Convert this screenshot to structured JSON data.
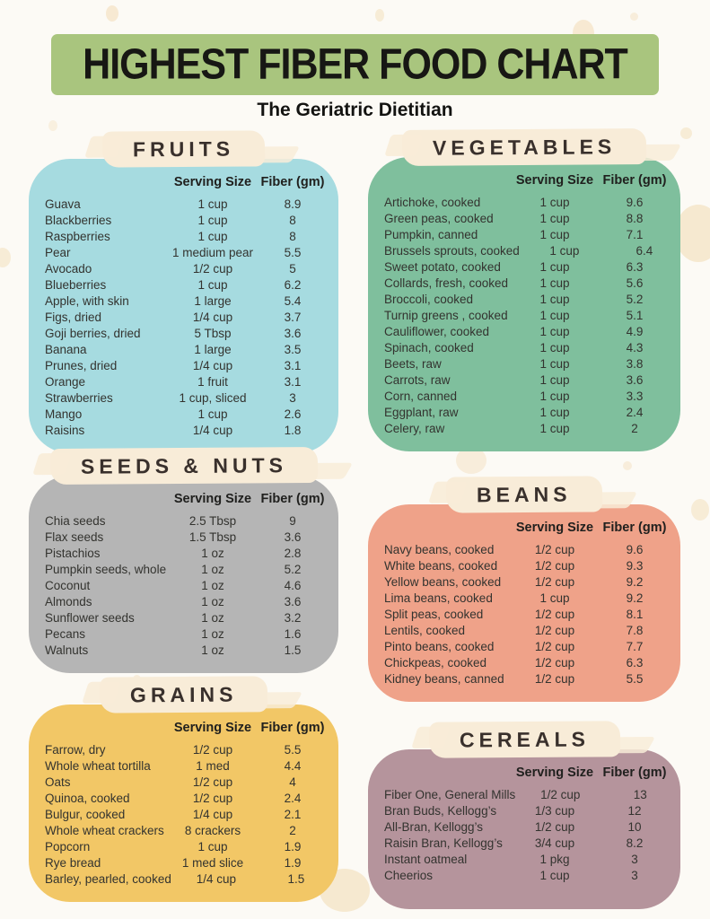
{
  "header": {
    "title": "HIGHEST FIBER FOOD CHART",
    "subtitle": "The Geriatric Dietitian"
  },
  "columns": {
    "serving": "Serving Size",
    "fiber": "Fiber (gm)"
  },
  "palette": {
    "background": "#fcfaf5",
    "splotch": "#f5e5c9",
    "header_band": "#a9c57e",
    "brush": "#f8ecd8",
    "title_text": "#171714",
    "section_title_text": "#39302c",
    "row_text": "#33332f"
  },
  "sections": [
    {
      "id": "fruits",
      "title": "FRUITS",
      "color": "#a6dbe0",
      "rows": [
        [
          "Guava",
          "1 cup",
          "8.9"
        ],
        [
          "Blackberries",
          "1 cup",
          "8"
        ],
        [
          "Raspberries",
          "1 cup",
          "8"
        ],
        [
          "Pear",
          "1 medium pear",
          "5.5"
        ],
        [
          "Avocado",
          "1/2 cup",
          "5"
        ],
        [
          "Blueberries",
          "1 cup",
          "6.2"
        ],
        [
          "Apple, with skin",
          "1 large",
          "5.4"
        ],
        [
          "Figs, dried",
          "1/4 cup",
          "3.7"
        ],
        [
          "Goji berries, dried",
          "5 Tbsp",
          "3.6"
        ],
        [
          "Banana",
          "1 large",
          "3.5"
        ],
        [
          "Prunes, dried",
          "1/4 cup",
          "3.1"
        ],
        [
          "Orange",
          "1 fruit",
          "3.1"
        ],
        [
          "Strawberries",
          "1 cup, sliced",
          "3"
        ],
        [
          "Mango",
          "1 cup",
          "2.6"
        ],
        [
          "Raisins",
          "1/4 cup",
          "1.8"
        ]
      ]
    },
    {
      "id": "vegetables",
      "title": "VEGETABLES",
      "color": "#7fbf9d",
      "rows": [
        [
          "Artichoke, cooked",
          "1 cup",
          "9.6"
        ],
        [
          "Green peas, cooked",
          "1 cup",
          "8.8"
        ],
        [
          "Pumpkin, canned",
          "1 cup",
          "7.1"
        ],
        [
          "Brussels sprouts, cooked",
          "1 cup",
          "6.4"
        ],
        [
          "Sweet potato, cooked",
          "1 cup",
          "6.3"
        ],
        [
          "Collards, fresh, cooked",
          "1 cup",
          "5.6"
        ],
        [
          "Broccoli, cooked",
          "1 cup",
          "5.2"
        ],
        [
          "Turnip greens , cooked",
          "1 cup",
          "5.1"
        ],
        [
          "Cauliflower, cooked",
          "1 cup",
          "4.9"
        ],
        [
          "Spinach, cooked",
          "1 cup",
          "4.3"
        ],
        [
          "Beets, raw",
          "1 cup",
          "3.8"
        ],
        [
          "Carrots, raw",
          "1 cup",
          "3.6"
        ],
        [
          "Corn, canned",
          "1 cup",
          "3.3"
        ],
        [
          "Eggplant, raw",
          "1 cup",
          "2.4"
        ],
        [
          "Celery, raw",
          "1 cup",
          "2"
        ]
      ]
    },
    {
      "id": "seeds-nuts",
      "title": "SEEDS & NUTS",
      "color": "#b5b5b5",
      "rows": [
        [
          "Chia seeds",
          "2.5 Tbsp",
          "9"
        ],
        [
          "Flax seeds",
          "1.5 Tbsp",
          "3.6"
        ],
        [
          "Pistachios",
          "1 oz",
          "2.8"
        ],
        [
          "Pumpkin seeds, whole",
          "1 oz",
          "5.2"
        ],
        [
          "Coconut",
          "1 oz",
          "4.6"
        ],
        [
          "Almonds",
          "1 oz",
          "3.6"
        ],
        [
          "Sunflower seeds",
          "1 oz",
          "3.2"
        ],
        [
          "Pecans",
          "1 oz",
          "1.6"
        ],
        [
          "Walnuts",
          "1 oz",
          "1.5"
        ]
      ]
    },
    {
      "id": "beans",
      "title": "BEANS",
      "color": "#efa289",
      "rows": [
        [
          "Navy beans, cooked",
          "1/2 cup",
          "9.6"
        ],
        [
          "White beans, cooked",
          "1/2 cup",
          "9.3"
        ],
        [
          "Yellow beans, cooked",
          "1/2 cup",
          "9.2"
        ],
        [
          "Lima beans, cooked",
          "1 cup",
          "9.2"
        ],
        [
          "Split peas, cooked",
          "1/2 cup",
          "8.1"
        ],
        [
          "Lentils, cooked",
          "1/2 cup",
          "7.8"
        ],
        [
          "Pinto beans, cooked",
          "1/2 cup",
          "7.7"
        ],
        [
          "Chickpeas, cooked",
          "1/2 cup",
          "6.3"
        ],
        [
          "Kidney beans, canned",
          "1/2 cup",
          "5.5"
        ]
      ]
    },
    {
      "id": "grains",
      "title": "GRAINS",
      "color": "#f2c766",
      "rows": [
        [
          "Farrow, dry",
          "1/2 cup",
          "5.5"
        ],
        [
          "Whole wheat tortilla",
          "1 med",
          "4.4"
        ],
        [
          "Oats",
          "1/2 cup",
          "4"
        ],
        [
          "Quinoa, cooked",
          "1/2 cup",
          "2.4"
        ],
        [
          "Bulgur, cooked",
          "1/4 cup",
          "2.1"
        ],
        [
          "Whole wheat crackers",
          "8 crackers",
          "2"
        ],
        [
          "Popcorn",
          "1 cup",
          "1.9"
        ],
        [
          "Rye bread",
          "1 med slice",
          "1.9"
        ],
        [
          "Barley, pearled, cooked",
          "1/4 cup",
          "1.5"
        ]
      ]
    },
    {
      "id": "cereals",
      "title": "CEREALS",
      "color": "#b5949c",
      "rows": [
        [
          "Fiber One, General Mills",
          "1/2 cup",
          "13"
        ],
        [
          "Bran Buds, Kellogg’s",
          "1/3 cup",
          "12"
        ],
        [
          "All-Bran, Kellogg’s",
          "1/2 cup",
          "10"
        ],
        [
          "Raisin Bran, Kellogg’s",
          "3/4 cup",
          "8.2"
        ],
        [
          "Instant oatmeal",
          "1 pkg",
          "3"
        ],
        [
          "Cheerios",
          "1 cup",
          "3"
        ]
      ]
    }
  ]
}
